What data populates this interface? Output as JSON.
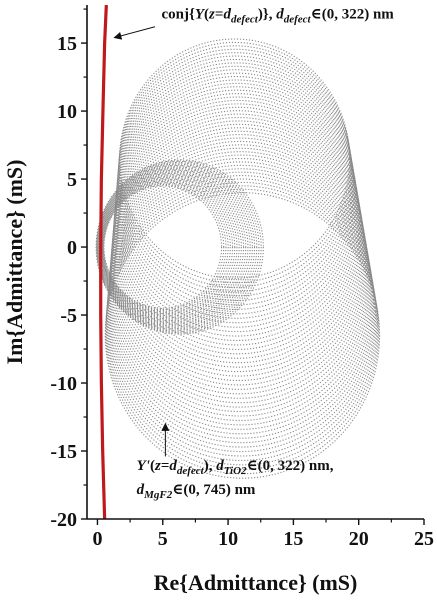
{
  "chart_data": {
    "type": "scatter",
    "xlabel": "Re{Admittance} (mS)",
    "ylabel": "Im{Admittance} (mS)",
    "xlim": [
      -0.8,
      25
    ],
    "ylim": [
      -20,
      17.8
    ],
    "xticks": [
      0,
      5,
      10,
      15,
      20,
      25
    ],
    "yticks": [
      -20,
      -15,
      -10,
      -5,
      0,
      5,
      10,
      15
    ],
    "grid": false,
    "colors": {
      "circles": "#8a8a8a",
      "curve": "#c0191d",
      "axes": "#111111"
    },
    "series": [
      {
        "style": "red solid line",
        "points": [
          [
            0.55,
            -20
          ],
          [
            0.4,
            -15
          ],
          [
            0.3,
            -10
          ],
          [
            0.25,
            -5
          ],
          [
            0.25,
            0
          ],
          [
            0.3,
            5
          ],
          [
            0.42,
            10
          ],
          [
            0.55,
            15
          ],
          [
            0.68,
            17.8
          ]
        ]
      },
      {
        "style": "grey dotted circle family (outer)",
        "circle_range": {
          "x_center_start": 10.5,
          "x_center_end": 11.1,
          "y_center_start": 6.5,
          "y_center_end": -6.5,
          "radius_start": 8.8,
          "radius_end": 10.5,
          "count": 46
        }
      },
      {
        "style": "grey dotted circle family (inner)",
        "circle_range": {
          "x_center_start": 5.0,
          "x_center_end": 6.3,
          "y_center_start": 0.0,
          "y_center_end": 0.0,
          "radius_start": 4.5,
          "radius_end": 6.4,
          "count": 20
        }
      }
    ],
    "annotations": [
      {
        "lines": [
          [
            {
              "t": "conj{"
            },
            {
              "t": "Y",
              "i": true
            },
            {
              "t": "("
            },
            {
              "t": "z",
              "i": true
            },
            {
              "t": "="
            },
            {
              "t": "d",
              "i": true
            },
            {
              "t": "defect",
              "i": true,
              "sub": true
            },
            {
              "t": ")}, "
            },
            {
              "t": "d",
              "i": true
            },
            {
              "t": "defect",
              "i": true,
              "sub": true
            },
            {
              "t": "∈(0, 322) nm"
            }
          ]
        ],
        "text_at": [
          4.9,
          16.8
        ],
        "arrow_from": [
          4.4,
          16.2
        ],
        "arrow_to": [
          1.3,
          15.4
        ]
      },
      {
        "lines": [
          [
            {
              "t": "Y'",
              "i": true
            },
            {
              "t": "("
            },
            {
              "t": "z",
              "i": true
            },
            {
              "t": "="
            },
            {
              "t": "d",
              "i": true
            },
            {
              "t": "defect",
              "i": true,
              "sub": true
            },
            {
              "t": "), "
            },
            {
              "t": "d",
              "i": true
            },
            {
              "t": "TiO2",
              "i": true,
              "sub": true
            },
            {
              "t": "∈(0, 322) nm,"
            }
          ],
          [
            {
              "t": "d",
              "i": true
            },
            {
              "t": "MgF2",
              "i": true,
              "sub": true
            },
            {
              "t": "∈(0, 745) nm"
            }
          ]
        ],
        "text_at": [
          3.0,
          -16.4
        ],
        "arrow_from": [
          5.2,
          -15.4
        ],
        "arrow_to": [
          5.2,
          -13.0
        ]
      }
    ]
  }
}
